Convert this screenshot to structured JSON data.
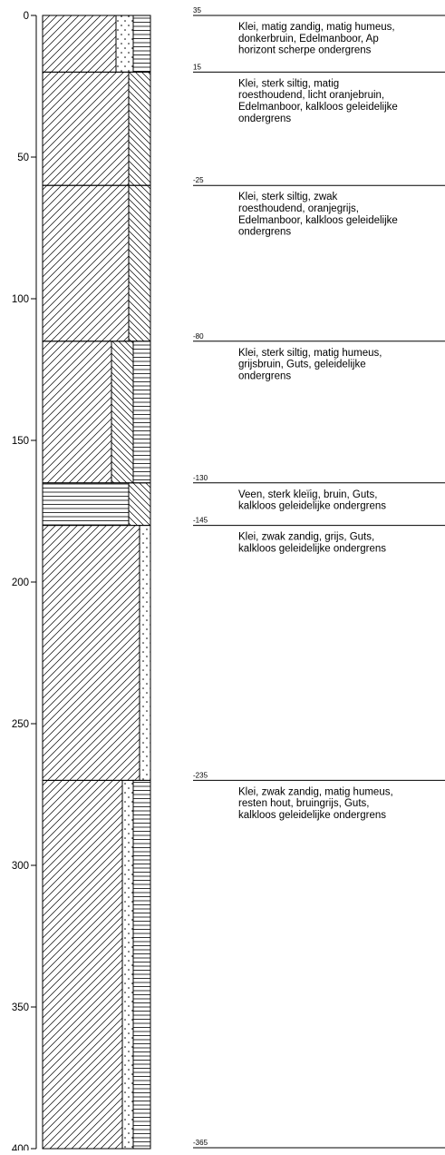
{
  "depth_axis": {
    "range": [
      0,
      400
    ],
    "ticks": [
      0,
      50,
      100,
      150,
      200,
      250,
      300,
      350,
      400
    ]
  },
  "layers": [
    {
      "top": 0,
      "bottom": 20,
      "elevation": 35,
      "description": [
        "Klei, matig zandig, matig humeus,",
        "donkerbruin, Edelmanboor, Ap",
        "horizont scherpe ondergrens"
      ]
    },
    {
      "top": 20,
      "bottom": 60,
      "elevation": 15,
      "description": [
        "Klei, sterk siltig, matig",
        "roesthoudend, licht oranjebruin,",
        "Edelmanboor, kalkloos geleidelijke",
        "ondergrens"
      ]
    },
    {
      "top": 60,
      "bottom": 115,
      "elevation": -25,
      "description": [
        "Klei, sterk siltig, zwak",
        "roesthoudend, oranjegrijs,",
        "Edelmanboor, kalkloos geleidelijke",
        "ondergrens"
      ]
    },
    {
      "top": 115,
      "bottom": 165,
      "elevation": -80,
      "description": [
        "Klei, sterk siltig, matig humeus,",
        "grijsbruin, Guts, geleidelijke",
        "ondergrens"
      ]
    },
    {
      "top": 165,
      "bottom": 180,
      "elevation": -130,
      "description": [
        "Veen, sterk kleïig, bruin, Guts,",
        "kalkloos geleidelijke ondergrens"
      ]
    },
    {
      "top": 180,
      "bottom": 270,
      "elevation": -145,
      "description": [
        "Klei, zwak zandig, grijs, Guts,",
        "kalkloos geleidelijke ondergrens"
      ]
    },
    {
      "top": 270,
      "bottom": 400,
      "elevation": -235,
      "description": [
        "Klei, zwak zandig, matig humeus,",
        "resten hout, bruingrijs, Guts,",
        "kalkloos geleidelijke ondergrens"
      ]
    }
  ],
  "base_elevation": -365
}
